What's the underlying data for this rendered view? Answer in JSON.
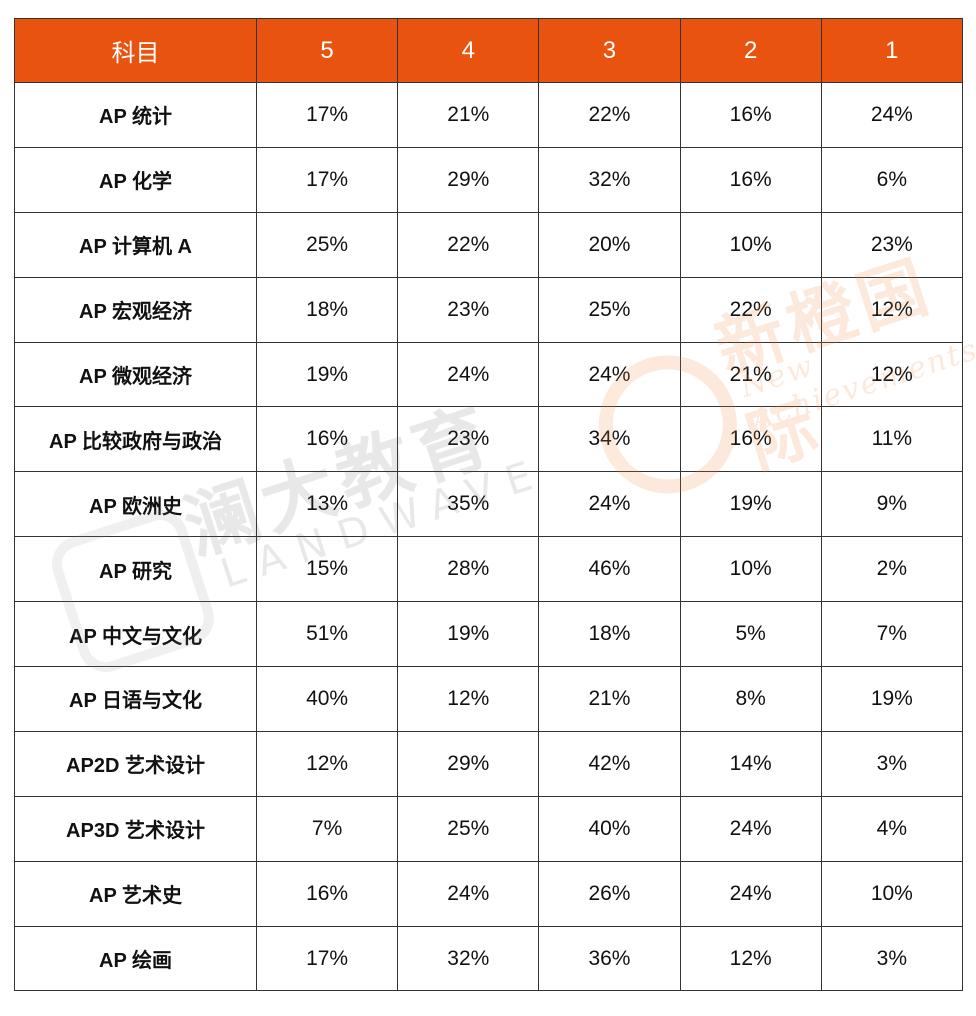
{
  "table": {
    "headers": [
      "科目",
      "5",
      "4",
      "3",
      "2",
      "1"
    ],
    "rows": [
      [
        "AP 统计",
        "17%",
        "21%",
        "22%",
        "16%",
        "24%"
      ],
      [
        "AP 化学",
        "17%",
        "29%",
        "32%",
        "16%",
        "6%"
      ],
      [
        "AP 计算机 A",
        "25%",
        "22%",
        "20%",
        "10%",
        "23%"
      ],
      [
        "AP 宏观经济",
        "18%",
        "23%",
        "25%",
        "22%",
        "12%"
      ],
      [
        "AP 微观经济",
        "19%",
        "24%",
        "24%",
        "21%",
        "12%"
      ],
      [
        "AP 比较政府与政治",
        "16%",
        "23%",
        "34%",
        "16%",
        "11%"
      ],
      [
        "AP 欧洲史",
        "13%",
        "35%",
        "24%",
        "19%",
        "9%"
      ],
      [
        "AP 研究",
        "15%",
        "28%",
        "46%",
        "10%",
        "2%"
      ],
      [
        "AP 中文与文化",
        "51%",
        "19%",
        "18%",
        "5%",
        "7%"
      ],
      [
        "AP 日语与文化",
        "40%",
        "12%",
        "21%",
        "8%",
        "19%"
      ],
      [
        "AP2D 艺术设计",
        "12%",
        "29%",
        "42%",
        "14%",
        "3%"
      ],
      [
        "AP3D 艺术设计",
        "7%",
        "25%",
        "40%",
        "24%",
        "4%"
      ],
      [
        "AP 艺术史",
        "16%",
        "24%",
        "26%",
        "24%",
        "10%"
      ],
      [
        "AP 绘画",
        "17%",
        "32%",
        "36%",
        "12%",
        "3%"
      ]
    ]
  },
  "watermarks": {
    "landwave_cn": "澜大教育",
    "landwave_en": "LANDWAVE",
    "xincheng_cn": "新橙国际",
    "xincheng_en": "New Achievements"
  },
  "colors": {
    "header_bg": "#e8530f",
    "header_text": "#ffffff",
    "border": "#333333"
  }
}
